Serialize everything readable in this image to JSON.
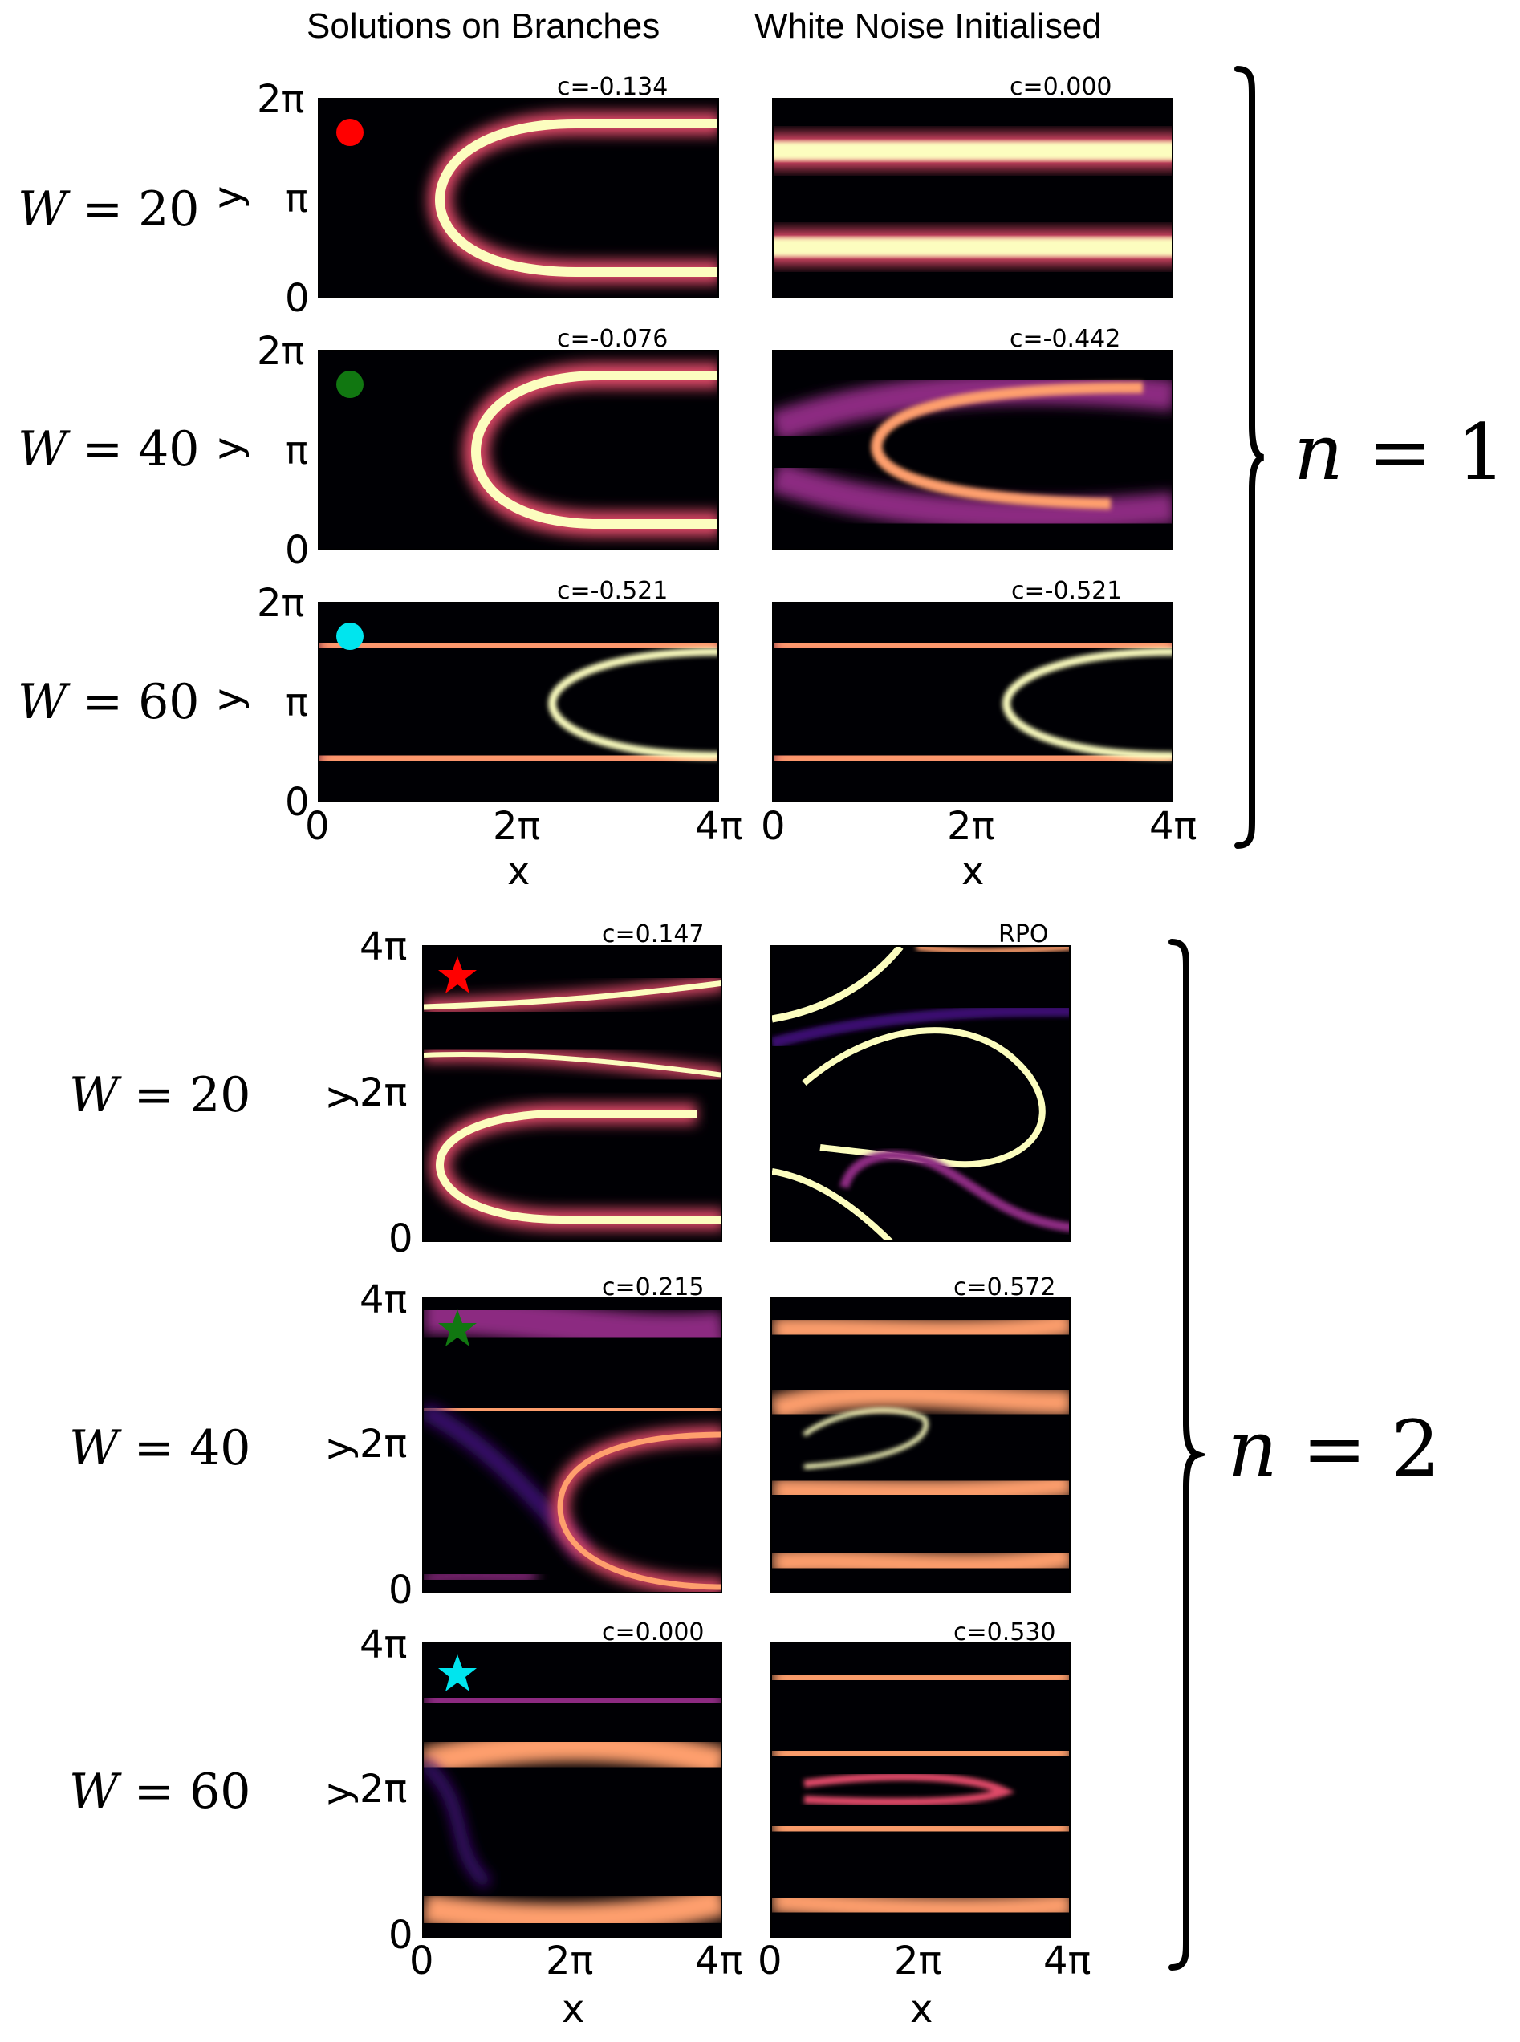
{
  "columns": {
    "left": "Solutions on Branches",
    "right": "White Noise Initialised"
  },
  "groups": [
    {
      "id": "n1",
      "n_label": "n = 1",
      "n_value": "1",
      "y_ticks": [
        "0",
        "π",
        "2π"
      ],
      "x_ticks": [
        "0",
        "2π",
        "4π"
      ],
      "x_axis_label": "x",
      "y_axis_label": "y",
      "rows": [
        {
          "W": "20",
          "left_c": "c=-0.134",
          "right_c": "c=0.000",
          "marker": "circle",
          "marker_color": "#ff0000"
        },
        {
          "W": "40",
          "left_c": "c=-0.076",
          "right_c": "c=-0.442",
          "marker": "circle",
          "marker_color": "#117711"
        },
        {
          "W": "60",
          "left_c": "c=-0.521",
          "right_c": "c=-0.521",
          "marker": "circle",
          "marker_color": "#00e5ee"
        }
      ]
    },
    {
      "id": "n2",
      "n_label": "n = 2",
      "n_value": "2",
      "y_ticks": [
        "0",
        "2π",
        "4π"
      ],
      "x_ticks": [
        "0",
        "2π",
        "4π"
      ],
      "x_axis_label": "x",
      "y_axis_label": "y",
      "rows": [
        {
          "W": "20",
          "left_c": "c=0.147",
          "right_c": "RPO",
          "marker": "star",
          "marker_color": "#ff0000"
        },
        {
          "W": "40",
          "left_c": "c=0.215",
          "right_c": "c=0.572",
          "marker": "star",
          "marker_color": "#117711"
        },
        {
          "W": "60",
          "left_c": "c=0.000",
          "right_c": "c=0.530",
          "marker": "star",
          "marker_color": "#00e5ee"
        }
      ]
    }
  ],
  "colormap": [
    "#000004",
    "#3b0f70",
    "#8c2981",
    "#de4968",
    "#fe9f6d",
    "#fcfdbf"
  ]
}
